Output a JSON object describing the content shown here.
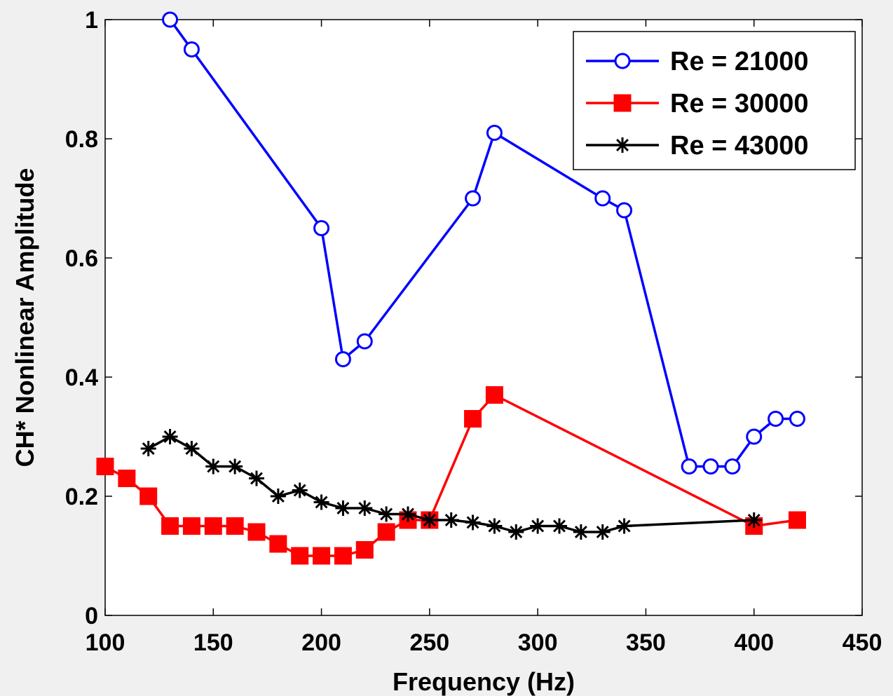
{
  "chart_data": {
    "type": "line",
    "title": "",
    "xlabel": "Frequency (Hz)",
    "ylabel": "CH* Nonlinear Amplitude",
    "xlim": [
      100,
      450
    ],
    "ylim": [
      0,
      1
    ],
    "xticks": [
      100,
      150,
      200,
      250,
      300,
      350,
      400,
      450
    ],
    "yticks": [
      0,
      0.2,
      0.4,
      0.6,
      0.8,
      1
    ],
    "ytick_labels": [
      "0",
      "0.2",
      "0.4",
      "0.6",
      "0.8",
      "1"
    ],
    "grid": false,
    "legend_position": "top-right",
    "series": [
      {
        "name": "Re = 21000",
        "color": "#0000ff",
        "marker": "circle",
        "x": [
          130,
          140,
          200,
          210,
          220,
          270,
          280,
          330,
          340,
          370,
          380,
          390,
          400,
          410,
          420
        ],
        "y": [
          1.0,
          0.95,
          0.65,
          0.43,
          0.46,
          0.7,
          0.81,
          0.7,
          0.68,
          0.25,
          0.25,
          0.25,
          0.3,
          0.33,
          0.33
        ]
      },
      {
        "name": "Re = 30000",
        "color": "#ff0000",
        "marker": "square",
        "x": [
          100,
          110,
          120,
          130,
          140,
          150,
          160,
          170,
          180,
          190,
          200,
          210,
          220,
          230,
          240,
          250,
          270,
          280,
          400,
          420
        ],
        "y": [
          0.25,
          0.23,
          0.2,
          0.15,
          0.15,
          0.15,
          0.15,
          0.14,
          0.12,
          0.1,
          0.1,
          0.1,
          0.11,
          0.14,
          0.16,
          0.16,
          0.33,
          0.37,
          0.15,
          0.16
        ]
      },
      {
        "name": "Re = 43000",
        "color": "#000000",
        "marker": "asterisk",
        "x": [
          120,
          130,
          140,
          150,
          160,
          170,
          180,
          190,
          200,
          210,
          220,
          230,
          240,
          250,
          260,
          270,
          280,
          290,
          300,
          310,
          320,
          330,
          340,
          400
        ],
        "y": [
          0.28,
          0.3,
          0.28,
          0.25,
          0.25,
          0.23,
          0.2,
          0.21,
          0.19,
          0.18,
          0.18,
          0.17,
          0.17,
          0.16,
          0.16,
          0.156,
          0.15,
          0.14,
          0.15,
          0.15,
          0.14,
          0.14,
          0.15,
          0.16
        ]
      }
    ]
  }
}
